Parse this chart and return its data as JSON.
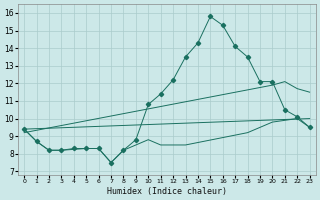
{
  "xlabel": "Humidex (Indice chaleur)",
  "xlim": [
    -0.5,
    23.5
  ],
  "ylim": [
    6.8,
    16.5
  ],
  "yticks": [
    7,
    8,
    9,
    10,
    11,
    12,
    13,
    14,
    15,
    16
  ],
  "xticks": [
    0,
    1,
    2,
    3,
    4,
    5,
    6,
    7,
    8,
    9,
    10,
    11,
    12,
    13,
    14,
    15,
    16,
    17,
    18,
    19,
    20,
    21,
    22,
    23
  ],
  "bg_color": "#cce8e8",
  "grid_color": "#aacccc",
  "line_color": "#1a7060",
  "series1_x": [
    0,
    1,
    2,
    3,
    4,
    5,
    6,
    7,
    8,
    9,
    10,
    11,
    12,
    13,
    14,
    15,
    16,
    17,
    18,
    19,
    20,
    21,
    22,
    23
  ],
  "series1_y": [
    9.4,
    8.7,
    8.2,
    8.2,
    8.3,
    8.3,
    8.3,
    7.5,
    8.2,
    8.8,
    10.8,
    11.4,
    12.2,
    13.5,
    14.3,
    15.8,
    15.3,
    14.1,
    13.5,
    12.1,
    12.1,
    10.5,
    10.1,
    9.5
  ],
  "series2_x": [
    0,
    1,
    2,
    3,
    5,
    6,
    7,
    8,
    10,
    11,
    12,
    13,
    18,
    19,
    20,
    21,
    22,
    23
  ],
  "series2_y": [
    9.4,
    8.7,
    8.2,
    8.2,
    8.3,
    8.3,
    7.5,
    8.2,
    8.8,
    8.5,
    8.5,
    8.5,
    9.2,
    9.5,
    9.8,
    9.9,
    10.0,
    9.5
  ],
  "series3_x": [
    0,
    23
  ],
  "series3_y": [
    9.4,
    10.0
  ],
  "series4_x": [
    0,
    20,
    21,
    22,
    23
  ],
  "series4_y": [
    9.2,
    11.9,
    12.1,
    11.7,
    11.5
  ]
}
